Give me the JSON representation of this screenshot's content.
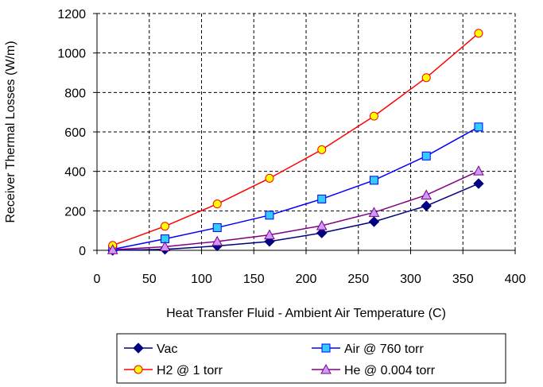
{
  "chart_data": {
    "type": "line",
    "xlabel": "Heat Transfer Fluid - Ambient Air Temperature (C)",
    "ylabel": "Receiver Thermal Losses (W/m)",
    "xlim": [
      0,
      400
    ],
    "ylim": [
      0,
      1200
    ],
    "x_ticks": [
      "0",
      "50",
      "100",
      "150",
      "200",
      "250",
      "300",
      "350",
      "400"
    ],
    "y_ticks": [
      "0",
      "200",
      "400",
      "600",
      "800",
      "1000",
      "1200"
    ],
    "x": [
      15,
      65,
      115,
      165,
      215,
      265,
      315,
      365
    ],
    "grid": true,
    "legend_placement": "bottom",
    "series": [
      {
        "name": "Vac",
        "color": "#000080",
        "fill": "#000080",
        "marker": "diamond",
        "values": [
          0,
          5,
          22,
          45,
          88,
          145,
          225,
          338
        ]
      },
      {
        "name": "Air @ 760 torr",
        "color": "#0000ff",
        "fill": "#33ccff",
        "marker": "square",
        "values": [
          5,
          58,
          115,
          178,
          260,
          355,
          478,
          625
        ]
      },
      {
        "name": "H2 @ 1 torr",
        "color": "#ff0000",
        "fill": "#ffff00",
        "marker": "circle",
        "values": [
          25,
          122,
          235,
          365,
          510,
          680,
          875,
          1100
        ]
      },
      {
        "name": "He @ 0.004 torr",
        "color": "#800080",
        "fill": "#cc99ff",
        "marker": "triangle",
        "values": [
          3,
          18,
          45,
          78,
          125,
          192,
          280,
          402
        ]
      }
    ]
  }
}
